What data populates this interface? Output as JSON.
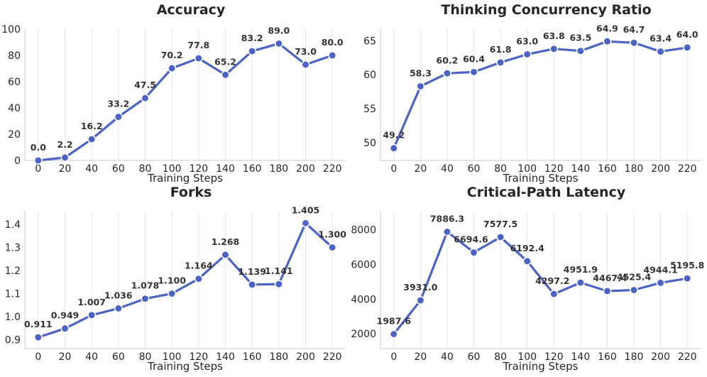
{
  "figure": {
    "xlabel": "Training Steps",
    "line_color": "#4a63c4"
  },
  "chart_data": [
    {
      "type": "line",
      "title": "Accuracy",
      "xlabel": "Training Steps",
      "ylabel": "",
      "x": [
        0,
        20,
        40,
        60,
        80,
        100,
        120,
        140,
        160,
        180,
        200,
        220
      ],
      "values": [
        0.0,
        2.2,
        16.2,
        33.2,
        47.5,
        70.2,
        77.8,
        65.2,
        83.2,
        89.0,
        73.0,
        80.0
      ],
      "labels": [
        "0.0",
        "2.2",
        "16.2",
        "33.2",
        "47.5",
        "70.2",
        "77.8",
        "65.2",
        "83.2",
        "89.0",
        "73.0",
        "80.0"
      ],
      "xlim": [
        -10,
        230
      ],
      "ylim": [
        0,
        100
      ],
      "yticks": [
        0,
        20,
        40,
        60,
        80,
        100
      ],
      "ytick_labels": [
        "0",
        "20",
        "40",
        "60",
        "80",
        "100"
      ],
      "xticks": [
        0,
        20,
        40,
        60,
        80,
        100,
        120,
        140,
        160,
        180,
        200,
        220
      ],
      "grid": "vertical"
    },
    {
      "type": "line",
      "title": "Thinking Concurrency Ratio",
      "xlabel": "Training Steps",
      "ylabel": "",
      "x": [
        0,
        20,
        40,
        60,
        80,
        100,
        120,
        140,
        160,
        180,
        200,
        220
      ],
      "values": [
        49.2,
        58.3,
        60.2,
        60.4,
        61.8,
        63.0,
        63.8,
        63.5,
        64.9,
        64.7,
        63.4,
        64.0
      ],
      "labels": [
        "49.2",
        "58.3",
        "60.2",
        "60.4",
        "61.8",
        "63.0",
        "63.8",
        "63.5",
        "64.9",
        "64.7",
        "63.4",
        "64.0"
      ],
      "xlim": [
        -10,
        230
      ],
      "ylim": [
        47.4,
        66.7
      ],
      "yticks": [
        50,
        55,
        60,
        65
      ],
      "ytick_labels": [
        "50",
        "55",
        "60",
        "65"
      ],
      "xticks": [
        0,
        20,
        40,
        60,
        80,
        100,
        120,
        140,
        160,
        180,
        200,
        220
      ],
      "grid": "vertical"
    },
    {
      "type": "line",
      "title": "Forks",
      "xlabel": "Training Steps",
      "ylabel": "",
      "x": [
        0,
        20,
        40,
        60,
        80,
        100,
        120,
        140,
        160,
        180,
        200,
        220
      ],
      "values": [
        0.911,
        0.949,
        1.007,
        1.036,
        1.078,
        1.1,
        1.164,
        1.268,
        1.139,
        1.141,
        1.405,
        1.3
      ],
      "labels": [
        "0.911",
        "0.949",
        "1.007",
        "1.036",
        "1.078",
        "1.100",
        "1.164",
        "1.268",
        "1.139",
        "1.141",
        "1.405",
        "1.300"
      ],
      "xlim": [
        -10,
        230
      ],
      "ylim": [
        0.862,
        1.455
      ],
      "yticks": [
        0.9,
        1.0,
        1.1,
        1.2,
        1.3,
        1.4
      ],
      "ytick_labels": [
        "0.9",
        "1.0",
        "1.1",
        "1.2",
        "1.3",
        "1.4"
      ],
      "xticks": [
        0,
        20,
        40,
        60,
        80,
        100,
        120,
        140,
        160,
        180,
        200,
        220
      ],
      "grid": "vertical"
    },
    {
      "type": "line",
      "title": "Critical-Path Latency",
      "xlabel": "Training Steps",
      "ylabel": "",
      "x": [
        0,
        20,
        40,
        60,
        80,
        100,
        120,
        140,
        160,
        180,
        200,
        220
      ],
      "values": [
        1987.6,
        3931.0,
        7886.3,
        6694.6,
        7577.5,
        6192.4,
        4297.2,
        4951.9,
        4467.4,
        4525.4,
        4944.1,
        5195.8
      ],
      "labels": [
        "1987.6",
        "3931.0",
        "7886.3",
        "6694.6",
        "7577.5",
        "6192.4",
        "4297.2",
        "4951.9",
        "4467.4",
        "4525.4",
        "4944.1",
        "5195.8"
      ],
      "xlim": [
        -10,
        230
      ],
      "ylim": [
        1150,
        9050
      ],
      "yticks": [
        2000,
        4000,
        6000,
        8000
      ],
      "ytick_labels": [
        "2000",
        "4000",
        "6000",
        "8000"
      ],
      "xticks": [
        0,
        20,
        40,
        60,
        80,
        100,
        120,
        140,
        160,
        180,
        200,
        220
      ],
      "grid": "vertical"
    }
  ]
}
